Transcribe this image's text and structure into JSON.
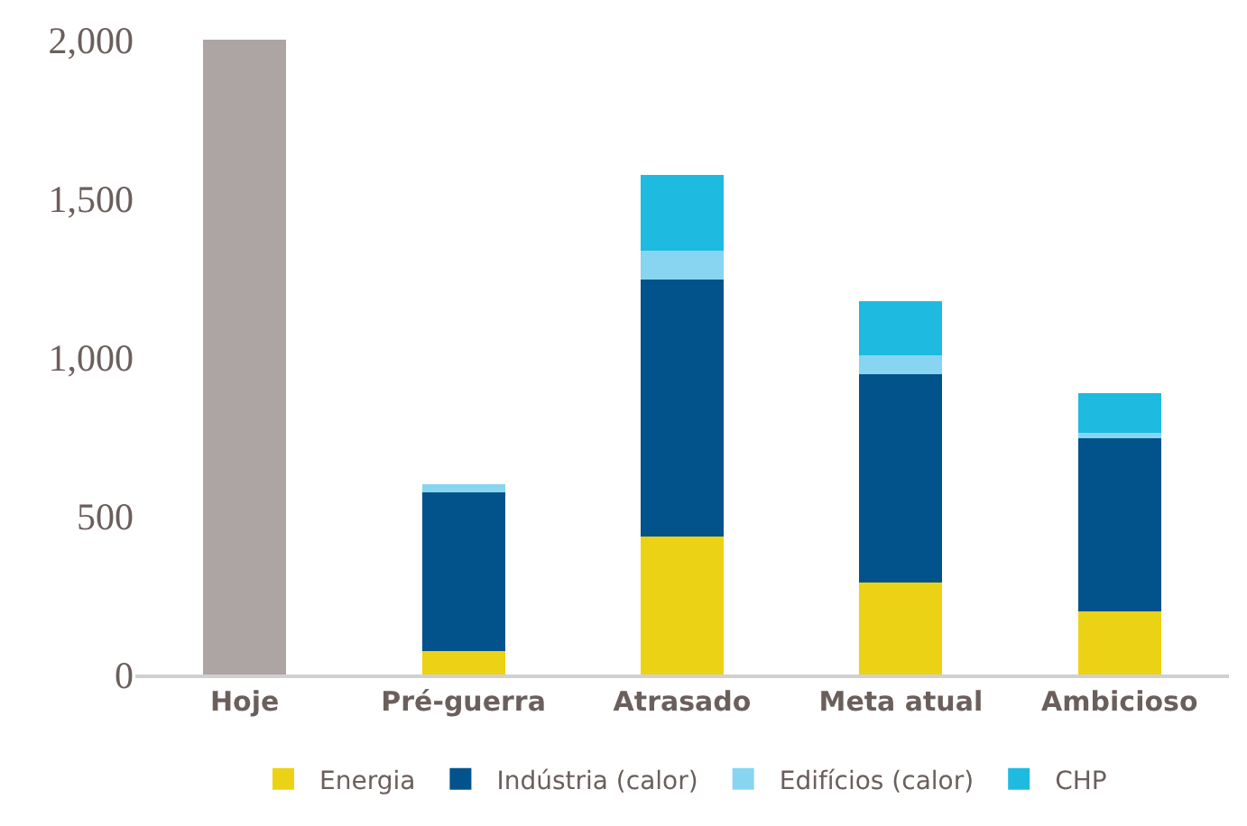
{
  "chart_data": {
    "type": "bar",
    "stacked": true,
    "categories": [
      "Hoje",
      "Pré-guerra",
      "Atrasado",
      "Meta atual",
      "Ambicioso"
    ],
    "series": [
      {
        "color": "#ada5a3",
        "values": [
          2000,
          null,
          null,
          null,
          null
        ]
      },
      {
        "name": "Energia",
        "color": "#ecd215",
        "values": [
          null,
          75,
          435,
          290,
          200
        ]
      },
      {
        "name": "Indústria (calor)",
        "color": "#02528b",
        "values": [
          null,
          500,
          810,
          655,
          545
        ]
      },
      {
        "name": "Edifícios (calor)",
        "color": "#87d5f0",
        "values": [
          null,
          25,
          90,
          60,
          15
        ]
      },
      {
        "name": "CHP",
        "color": "#1ebae0",
        "values": [
          null,
          0,
          240,
          170,
          125
        ]
      }
    ],
    "ylim": [
      0,
      2000
    ],
    "yticks": [
      0,
      500,
      {
        "value": 1000,
        "label": "1,000"
      },
      {
        "value": 1500,
        "label": "1,500"
      },
      {
        "value": 2000,
        "label": "2,000"
      }
    ],
    "grid": false,
    "legend": "bottom"
  }
}
